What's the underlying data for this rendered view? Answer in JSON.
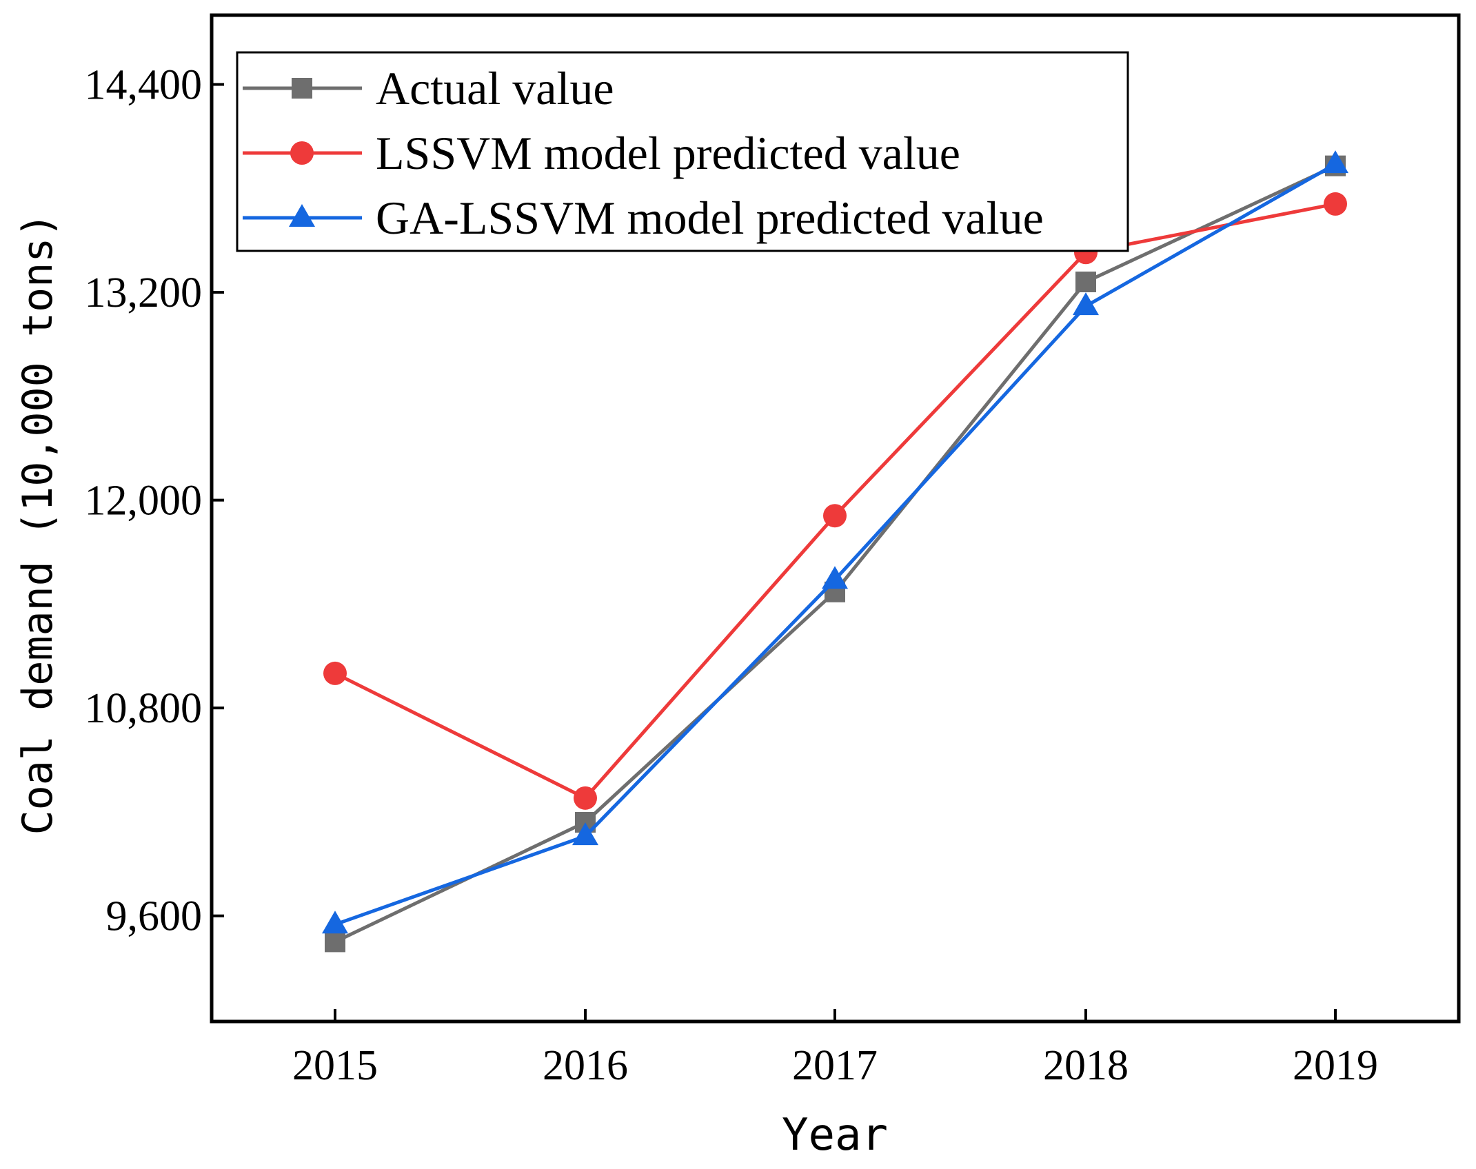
{
  "chart_data": {
    "type": "line",
    "title": "",
    "xlabel": "Year",
    "ylabel": "Coal demand (10,000 tons)",
    "categories": [
      "2015",
      "2016",
      "2017",
      "2018",
      "2019"
    ],
    "ylim": [
      8990,
      14800
    ],
    "yticks": [
      9600,
      10800,
      12000,
      13200,
      14400
    ],
    "ytick_labels": [
      "9,600",
      "10,800",
      "12,000",
      "13,200",
      "14,400"
    ],
    "legend_position": "top-left",
    "series": [
      {
        "name": "Actual value",
        "marker": "square",
        "color": "#6e6e6e",
        "values": [
          9450,
          10140,
          11470,
          13260,
          13930
        ]
      },
      {
        "name": "LSSVM model predicted value",
        "marker": "circle",
        "color": "#ee3a3a",
        "values": [
          11000,
          10280,
          11910,
          13430,
          13710
        ]
      },
      {
        "name": "GA-LSSVM model predicted value",
        "marker": "triangle",
        "color": "#1567e0",
        "values": [
          9550,
          10060,
          11540,
          13120,
          13940
        ]
      }
    ]
  }
}
